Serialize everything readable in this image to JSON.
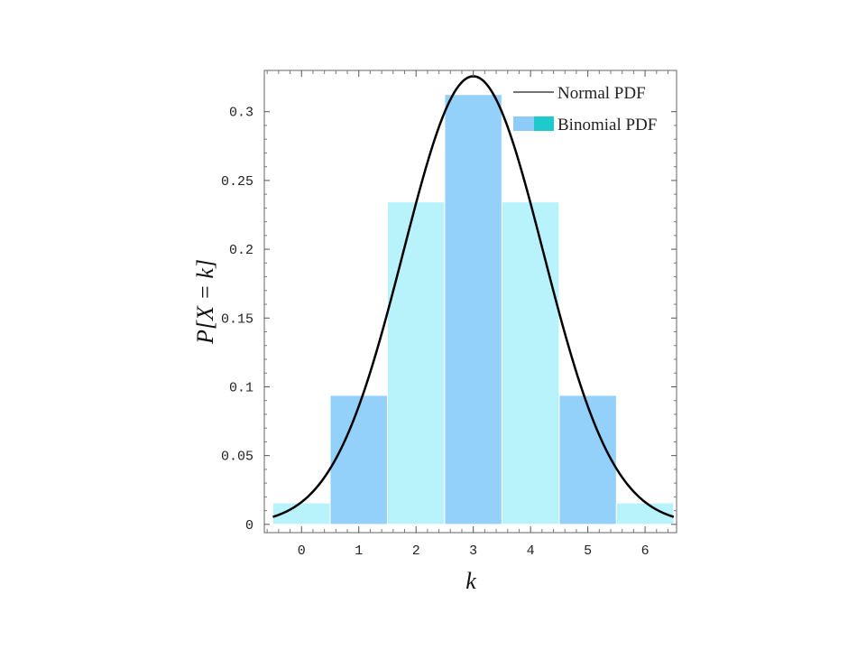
{
  "chart_data": {
    "type": "bar",
    "x": [
      0,
      1,
      2,
      3,
      4,
      5,
      6
    ],
    "categories": [
      "0",
      "1",
      "2",
      "3",
      "4",
      "5",
      "6"
    ],
    "series": [
      {
        "name": "Binomial PDF",
        "values": [
          0.0156,
          0.0938,
          0.2344,
          0.3125,
          0.2344,
          0.0938,
          0.0156
        ]
      },
      {
        "name": "Normal PDF",
        "type": "line",
        "mean": 3,
        "sd": 1.2247
      }
    ],
    "xlabel": "k",
    "ylabel": "P[X = k]",
    "xlim": [
      -0.65,
      6.55
    ],
    "ylim": [
      -0.006,
      0.33
    ],
    "yticks": [
      0,
      0.05,
      0.1,
      0.15,
      0.2,
      0.25,
      0.3
    ],
    "ytick_labels": [
      "0",
      "0.05",
      "0.1",
      "0.15",
      "0.2",
      "0.25",
      "0.3"
    ],
    "xticks": [
      0,
      1,
      2,
      3,
      4,
      5,
      6
    ],
    "grid": false,
    "legend_position": "top-right",
    "bar_colors": [
      "#b8f2fb",
      "#94d1fa"
    ],
    "line_color": "#000000",
    "legend_line_color": "#444444",
    "legend_swatch_colors": [
      "#8ecbf8",
      "#1fc9cc"
    ]
  }
}
